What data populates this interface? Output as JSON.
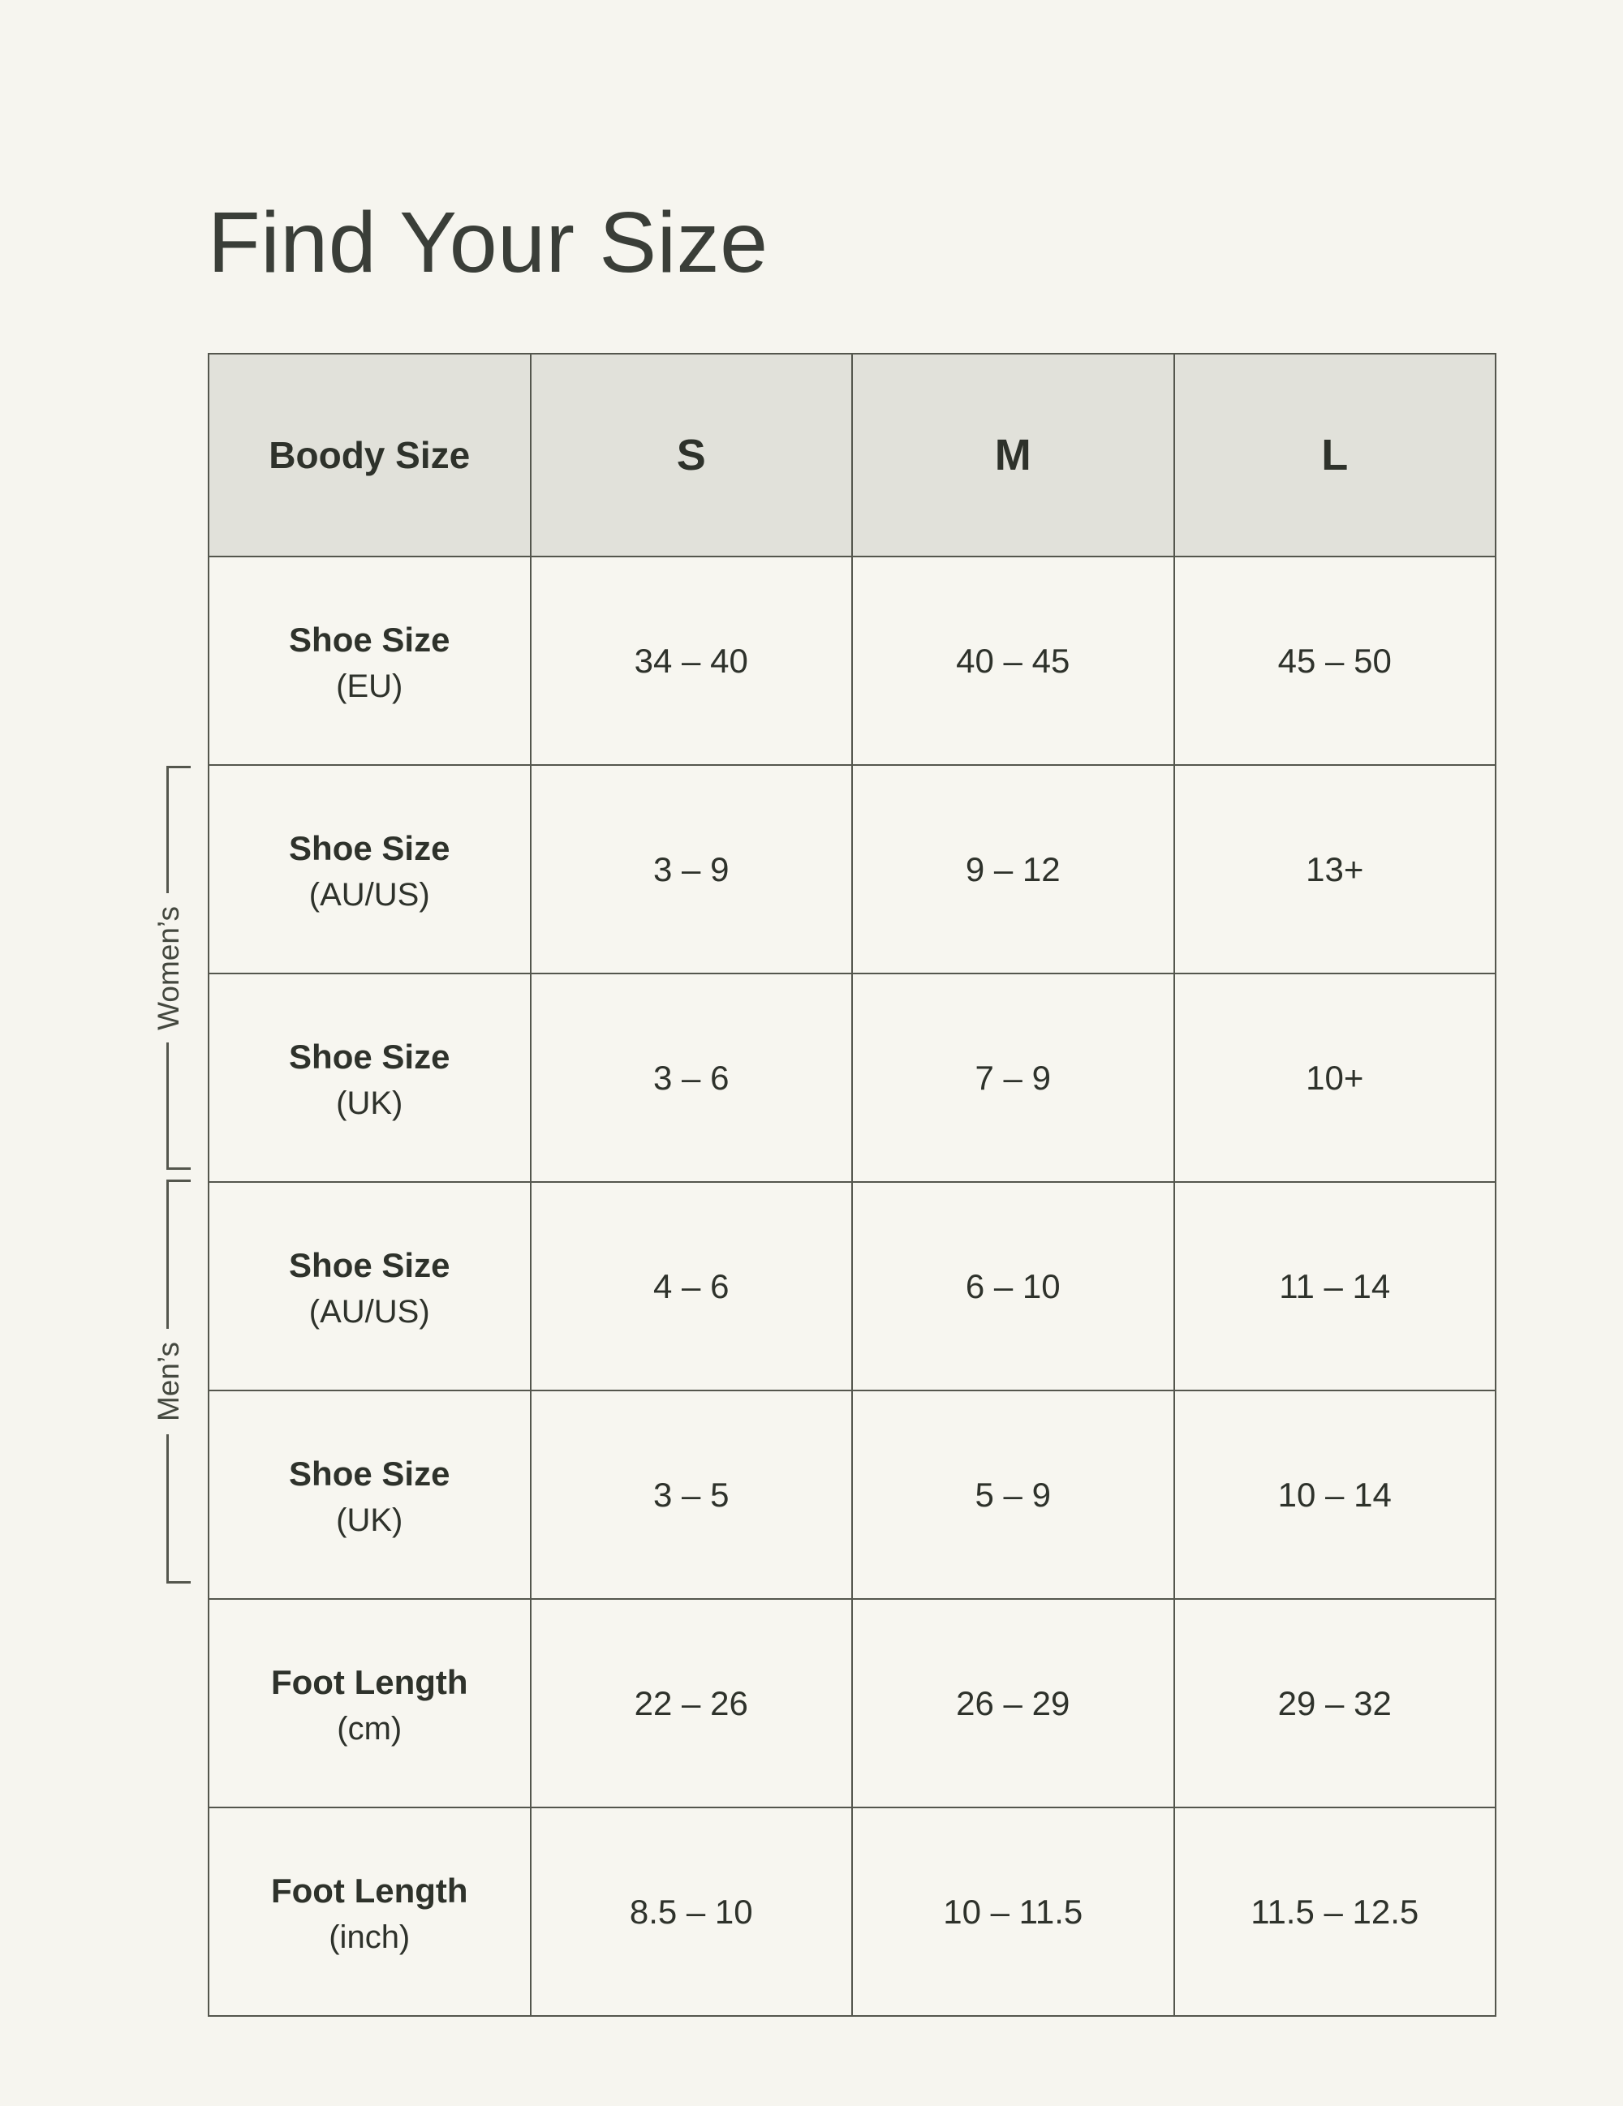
{
  "page": {
    "title": "Find Your Size"
  },
  "colors": {
    "background": "#F6F5EF",
    "header_cell_bg": "#E1E1DA",
    "body_cell_bg": "#F7F6F0",
    "border": "#54564D",
    "text": "#2E322B"
  },
  "brackets": [
    {
      "label": "Women’s"
    },
    {
      "label": "Men’s"
    }
  ],
  "chart_data": {
    "type": "table",
    "title": "Find Your Size",
    "columns": [
      "Boody Size",
      "S",
      "M",
      "L"
    ],
    "rows": [
      {
        "label": "Shoe Size",
        "sublabel": "(EU)",
        "group": "",
        "values": [
          "34 – 40",
          "40 – 45",
          "45 – 50"
        ]
      },
      {
        "label": "Shoe Size",
        "sublabel": "(AU/US)",
        "group": "Women’s",
        "values": [
          "3 – 9",
          "9 – 12",
          "13+"
        ]
      },
      {
        "label": "Shoe Size",
        "sublabel": "(UK)",
        "group": "Women’s",
        "values": [
          "3 – 6",
          "7 – 9",
          "10+"
        ]
      },
      {
        "label": "Shoe Size",
        "sublabel": "(AU/US)",
        "group": "Men’s",
        "values": [
          "4 – 6",
          "6 – 10",
          "11 – 14"
        ]
      },
      {
        "label": "Shoe Size",
        "sublabel": "(UK)",
        "group": "Men’s",
        "values": [
          "3 – 5",
          "5 – 9",
          "10 – 14"
        ]
      },
      {
        "label": "Foot Length",
        "sublabel": "(cm)",
        "group": "",
        "values": [
          "22 – 26",
          "26 – 29",
          "29 – 32"
        ]
      },
      {
        "label": "Foot Length",
        "sublabel": "(inch)",
        "group": "",
        "values": [
          "8.5 – 10",
          "10 – 11.5",
          "11.5 – 12.5"
        ]
      }
    ]
  }
}
